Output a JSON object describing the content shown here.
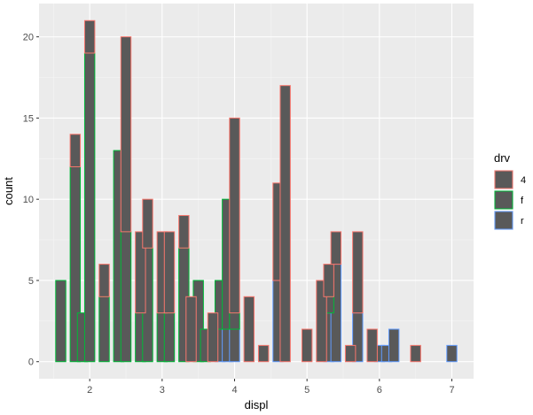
{
  "chart_data": {
    "type": "bar",
    "stacked": true,
    "xlabel": "displ",
    "ylabel": "count",
    "xlim": [
      1.3,
      7.3
    ],
    "ylim": [
      -1.05,
      22.05
    ],
    "x_ticks": [
      2,
      3,
      4,
      5,
      6,
      7
    ],
    "x_tick_labels": [
      "2",
      "3",
      "4",
      "5",
      "6",
      "7"
    ],
    "y_ticks": [
      0,
      5,
      10,
      15,
      20
    ],
    "y_tick_labels": [
      "0",
      "5",
      "10",
      "15",
      "20"
    ],
    "bin_width": 0.1,
    "grid": true,
    "fill_color": "#595959",
    "panel_background": "#EBEBEB",
    "legend": {
      "title": "drv",
      "placement": "right",
      "entries": [
        {
          "key": "4",
          "label": "4",
          "color": "#F8766D"
        },
        {
          "key": "f",
          "label": "f",
          "color": "#00BA38"
        },
        {
          "key": "r",
          "label": "r",
          "color": "#619CFF"
        }
      ]
    },
    "series": [
      {
        "key": "r",
        "bins": [
          [
            3.8,
            2
          ],
          [
            3.9,
            2
          ],
          [
            4.0,
            2
          ],
          [
            4.6,
            5
          ],
          [
            5.3,
            3
          ],
          [
            5.4,
            6
          ],
          [
            5.7,
            3
          ],
          [
            6.0,
            1
          ],
          [
            6.1,
            1
          ],
          [
            6.2,
            2
          ],
          [
            7.0,
            1
          ]
        ]
      },
      {
        "key": "f",
        "bins": [
          [
            1.6,
            5
          ],
          [
            1.8,
            12
          ],
          [
            1.9,
            3
          ],
          [
            2.0,
            19
          ],
          [
            2.2,
            4
          ],
          [
            2.4,
            13
          ],
          [
            2.5,
            8
          ],
          [
            2.7,
            3
          ],
          [
            2.8,
            7
          ],
          [
            3.0,
            3
          ],
          [
            3.1,
            3
          ],
          [
            3.3,
            7
          ],
          [
            3.5,
            5
          ],
          [
            3.6,
            2
          ],
          [
            3.8,
            3
          ],
          [
            3.9,
            8
          ],
          [
            4.0,
            1
          ],
          [
            5.3,
            1
          ]
        ]
      },
      {
        "key": "4",
        "bins": [
          [
            1.8,
            2
          ],
          [
            2.0,
            2
          ],
          [
            2.2,
            2
          ],
          [
            2.5,
            12
          ],
          [
            2.7,
            5
          ],
          [
            2.8,
            3
          ],
          [
            3.0,
            5
          ],
          [
            3.1,
            5
          ],
          [
            3.3,
            2
          ],
          [
            3.4,
            4
          ],
          [
            3.7,
            3
          ],
          [
            3.9,
            0
          ],
          [
            4.0,
            0
          ],
          [
            4.0,
            12
          ],
          [
            4.2,
            4
          ],
          [
            4.4,
            1
          ],
          [
            4.6,
            6
          ],
          [
            4.7,
            17
          ],
          [
            5.0,
            2
          ],
          [
            5.2,
            5
          ],
          [
            5.3,
            2
          ],
          [
            5.4,
            2
          ],
          [
            5.6,
            1
          ],
          [
            5.7,
            5
          ],
          [
            5.9,
            2
          ],
          [
            6.1,
            0
          ],
          [
            6.5,
            1
          ]
        ]
      }
    ]
  }
}
